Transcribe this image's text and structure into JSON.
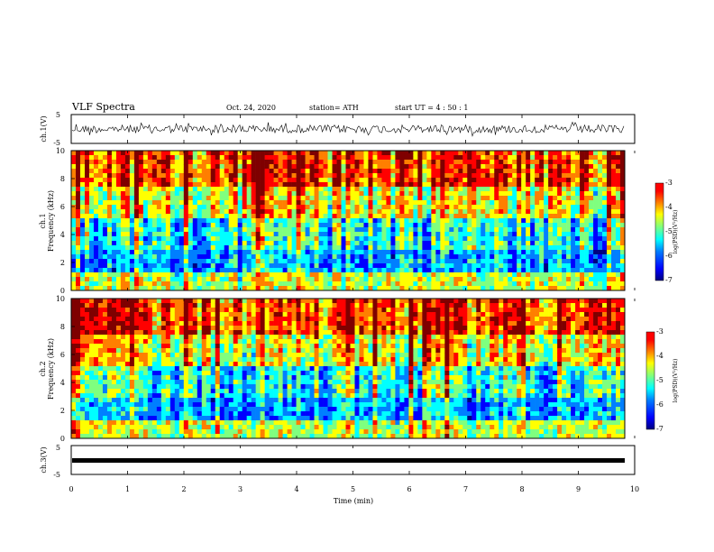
{
  "header": {
    "title": "VLF Spectra",
    "date": "Oct. 24, 2020",
    "station": "station= ATH",
    "start": "start UT =  4 : 50 : 1"
  },
  "chart_data": [
    {
      "type": "line",
      "panel": "ch1-waveform",
      "ylabel": "ch.1(V)",
      "ylim": [
        -5,
        5
      ],
      "yticks": [
        "5",
        "-5"
      ],
      "xlim": [
        0,
        10
      ],
      "series": [
        {
          "values_description_note": "",
          "values": []
        }
      ]
    },
    {
      "type": "heatmap",
      "panel": "ch1-spectrogram",
      "ylabel": "ch.1\nFrequency (kHz)",
      "ylim": [
        0,
        10
      ],
      "yticks": [
        "0",
        "2",
        "4",
        "6",
        "8",
        "10"
      ],
      "xlim": [
        0,
        9.8
      ],
      "colorbar": {
        "label": "log(PSD)(V²/Hz)",
        "range": [
          -7,
          -3
        ],
        "ticks": [
          "-3",
          "-4",
          "-5",
          "-6",
          "-7"
        ]
      }
    },
    {
      "type": "heatmap",
      "panel": "ch2-spectrogram",
      "ylabel": "ch.2\nFrequency (kHz)",
      "ylim": [
        0,
        10
      ],
      "yticks": [
        "0",
        "2",
        "4",
        "6",
        "8",
        "10"
      ],
      "xlim": [
        0,
        9.8
      ],
      "colorbar": {
        "label": "log(PSD)(V²/Hz)",
        "range": [
          -7,
          -3
        ],
        "ticks": [
          "-3",
          "-4",
          "-5",
          "-6",
          "-7"
        ]
      }
    },
    {
      "type": "line",
      "panel": "ch3-waveform",
      "ylabel": "ch.3(V)",
      "ylim": [
        -5,
        5
      ],
      "yticks": [
        "5",
        "-5"
      ],
      "xlim": [
        0,
        10
      ],
      "xlabel": "Time (min)",
      "xticks": [
        "0",
        "1",
        "2",
        "3",
        "4",
        "5",
        "6",
        "7",
        "8",
        "9",
        "10"
      ]
    }
  ],
  "colors": {
    "cmap": [
      "#00007f",
      "#0000ff",
      "#007fff",
      "#00ffff",
      "#7fff7f",
      "#ffff00",
      "#ff7f00",
      "#ff0000",
      "#7f0000"
    ]
  }
}
